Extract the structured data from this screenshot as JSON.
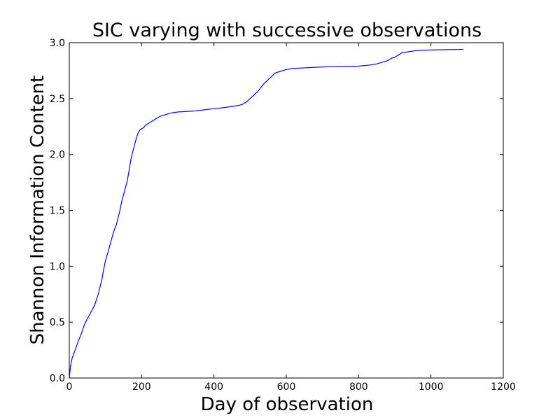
{
  "chart_data": {
    "type": "line",
    "title": "SIC varying with successive observations",
    "xlabel": "Day of observation",
    "ylabel": "Shannon Information Content",
    "xlim": [
      0,
      1200
    ],
    "ylim": [
      0,
      3.0
    ],
    "xticks": [
      0,
      200,
      400,
      600,
      800,
      1000,
      1200
    ],
    "yticks": [
      0.0,
      0.5,
      1.0,
      1.5,
      2.0,
      2.5,
      3.0
    ],
    "xtick_labels": [
      "0",
      "200",
      "400",
      "600",
      "800",
      "1000",
      "1200"
    ],
    "ytick_labels": [
      "0.0",
      "0.5",
      "1.0",
      "1.5",
      "2.0",
      "2.5",
      "3.0"
    ],
    "grid": false,
    "legend": "none",
    "line_color": "#0000ff",
    "series": [
      {
        "x": [
          0,
          3,
          8,
          15,
          25,
          35,
          42,
          50,
          60,
          70,
          80,
          90,
          95,
          100,
          110,
          120,
          125,
          130,
          140,
          145,
          150,
          155,
          160,
          165,
          170,
          175,
          180,
          185,
          190,
          195,
          200,
          205,
          210,
          220,
          230,
          240,
          250,
          260,
          280,
          300,
          350,
          400,
          430,
          450,
          470,
          480,
          490,
          500,
          510,
          520,
          530,
          540,
          550,
          560,
          570,
          580,
          590,
          600,
          620,
          650,
          680,
          720,
          760,
          800,
          815,
          830,
          850,
          870,
          880,
          890,
          900,
          910,
          920,
          940,
          960,
          1000,
          1050,
          1090
        ],
        "y": [
          0.0,
          0.1,
          0.18,
          0.24,
          0.33,
          0.41,
          0.48,
          0.53,
          0.59,
          0.65,
          0.75,
          0.88,
          0.97,
          1.05,
          1.16,
          1.28,
          1.33,
          1.37,
          1.5,
          1.58,
          1.64,
          1.7,
          1.76,
          1.85,
          1.95,
          2.02,
          2.08,
          2.14,
          2.19,
          2.22,
          2.23,
          2.24,
          2.26,
          2.28,
          2.3,
          2.32,
          2.34,
          2.35,
          2.37,
          2.38,
          2.39,
          2.41,
          2.42,
          2.43,
          2.44,
          2.45,
          2.47,
          2.5,
          2.53,
          2.56,
          2.6,
          2.64,
          2.67,
          2.7,
          2.73,
          2.74,
          2.75,
          2.76,
          2.77,
          2.775,
          2.78,
          2.785,
          2.787,
          2.79,
          2.795,
          2.8,
          2.81,
          2.83,
          2.84,
          2.86,
          2.87,
          2.89,
          2.91,
          2.92,
          2.93,
          2.935,
          2.938,
          2.94
        ]
      }
    ]
  }
}
